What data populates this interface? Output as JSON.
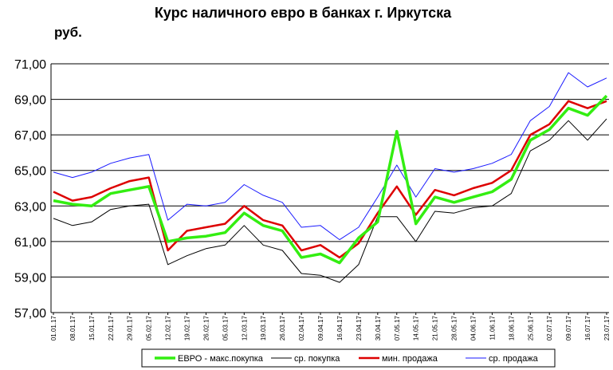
{
  "chart_data": {
    "type": "line",
    "title": "Курс наличного евро в банках г. Иркутска",
    "ylabel": "руб.",
    "ylim": [
      57,
      71
    ],
    "yticks": [
      "57,00",
      "59,00",
      "61,00",
      "63,00",
      "65,00",
      "67,00",
      "69,00",
      "71,00"
    ],
    "grid": true,
    "legend_position": "bottom",
    "x": [
      "01.01.17",
      "08.01.17",
      "15.01.17",
      "22.01.17",
      "29.01.17",
      "05.02.17",
      "12.02.17",
      "19.02.17",
      "26.02.17",
      "05.03.17",
      "12.03.17",
      "19.03.17",
      "26.03.17",
      "02.04.17",
      "09.04.17",
      "16.04.17",
      "23.04.17",
      "30.04.17",
      "07.05.17",
      "14.05.17",
      "21.05.17",
      "28.05.17",
      "04.06.17",
      "11.06.17",
      "18.06.17",
      "25.06.17",
      "02.07.17",
      "09.07.17",
      "16.07.17",
      "23.07.17"
    ],
    "series": [
      {
        "name": "ЕВРО - макс.покупка",
        "color": "#33ee11",
        "values": [
          63.3,
          63.1,
          63.0,
          63.7,
          63.9,
          64.1,
          61.0,
          61.2,
          61.3,
          61.5,
          62.6,
          61.9,
          61.6,
          60.1,
          60.3,
          59.8,
          61.2,
          62.1,
          67.2,
          62.0,
          63.5,
          63.2,
          63.5,
          63.8,
          64.5,
          66.7,
          67.3,
          68.5,
          68.1,
          69.2
        ]
      },
      {
        "name": "ср. покупка",
        "color": "#000000",
        "values": [
          62.3,
          61.9,
          62.1,
          62.8,
          63.0,
          63.1,
          59.7,
          60.2,
          60.6,
          60.8,
          61.9,
          60.8,
          60.5,
          59.2,
          59.1,
          58.7,
          59.7,
          62.4,
          62.4,
          61.0,
          62.7,
          62.6,
          62.9,
          63.0,
          63.7,
          66.1,
          66.7,
          67.8,
          66.7,
          67.9
        ]
      },
      {
        "name": "мин. продажа",
        "color": "#dd0000",
        "values": [
          63.8,
          63.3,
          63.5,
          64.0,
          64.4,
          64.6,
          60.5,
          61.6,
          61.8,
          62.0,
          63.0,
          62.2,
          61.9,
          60.5,
          60.8,
          60.1,
          60.9,
          62.6,
          64.1,
          62.5,
          63.9,
          63.6,
          64.0,
          64.3,
          65.0,
          67.0,
          67.6,
          68.9,
          68.5,
          68.9
        ]
      },
      {
        "name": "ср. продажа",
        "color": "#1a1aff",
        "values": [
          64.9,
          64.6,
          64.9,
          65.4,
          65.7,
          65.9,
          62.2,
          63.1,
          63.0,
          63.2,
          64.2,
          63.6,
          63.2,
          61.8,
          61.9,
          61.1,
          61.8,
          63.5,
          65.3,
          63.5,
          65.1,
          64.9,
          65.1,
          65.4,
          65.9,
          67.8,
          68.6,
          70.5,
          69.7,
          70.2
        ]
      }
    ]
  }
}
